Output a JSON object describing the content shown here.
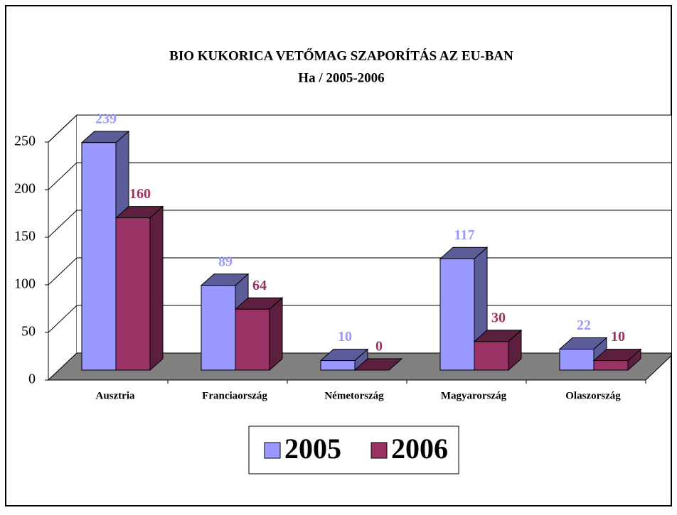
{
  "chart_data": {
    "type": "bar3d",
    "title": "BIO KUKORICA VETŐMAG SZAPORÍTÁS AZ EU-BAN",
    "subtitle": "Ha / 2005-2006",
    "categories": [
      "Ausztria",
      "Franciaország",
      "Németország",
      "Magyarország",
      "Olaszország"
    ],
    "series": [
      {
        "name": "2005",
        "color": "#9999ff",
        "values": [
          239,
          89,
          10,
          117,
          22
        ]
      },
      {
        "name": "2006",
        "color": "#993366",
        "values": [
          160,
          64,
          0,
          30,
          10
        ]
      }
    ],
    "ylim": [
      0,
      250
    ],
    "yticks": [
      0,
      50,
      100,
      150,
      200,
      250
    ],
    "grid": true,
    "legend": "bottom"
  }
}
